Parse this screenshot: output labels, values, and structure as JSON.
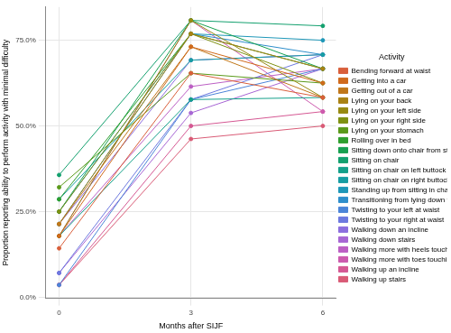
{
  "chart_data": {
    "type": "line",
    "x_label": "Months after SIJF",
    "y_label": "Proportion reporting ability to perform activity with minimal difficulty",
    "legend_title": "Activity",
    "legend": "right",
    "grid": true,
    "marker": "circle",
    "line_style": "solid",
    "x": [
      0,
      3,
      6
    ],
    "xlim": [
      -0.3,
      6.3
    ],
    "xticks": [
      0,
      3,
      6
    ],
    "ylim": [
      -0.3,
      84.7
    ],
    "yticks": [
      {
        "value": 0,
        "label": "0.0%"
      },
      {
        "value": 25,
        "label": "25.0%"
      },
      {
        "value": 50,
        "label": "50.0%"
      },
      {
        "value": 75,
        "label": "75.0%"
      }
    ],
    "series": [
      {
        "name": "Bending forward at waist",
        "color": "#D95F3B",
        "values": [
          14.3,
          65.4,
          58.3
        ]
      },
      {
        "name": "Getting into a car",
        "color": "#D06A1C",
        "values": [
          17.9,
          73.1,
          62.5
        ]
      },
      {
        "name": "Getting out of a car",
        "color": "#C0771A",
        "values": [
          21.4,
          73.1,
          58.3
        ]
      },
      {
        "name": "Lying on your back",
        "color": "#A98214",
        "values": [
          21.4,
          76.9,
          66.7
        ]
      },
      {
        "name": "Lying on your left side",
        "color": "#978A12",
        "values": [
          17.9,
          80.8,
          58.3
        ]
      },
      {
        "name": "Lying on your right side",
        "color": "#7E9112",
        "values": [
          25.0,
          76.9,
          62.5
        ]
      },
      {
        "name": "Lying on your stomach",
        "color": "#5A9A1A",
        "values": [
          32.1,
          65.4,
          62.5
        ]
      },
      {
        "name": "Rolling over in bed",
        "color": "#2E9F2E",
        "values": [
          28.6,
          76.9,
          66.7
        ]
      },
      {
        "name": "Sitting down onto chair from standing",
        "color": "#17A050",
        "values": [
          25.0,
          80.8,
          66.7
        ]
      },
      {
        "name": "Sitting on chair",
        "color": "#13A06E",
        "values": [
          35.7,
          80.8,
          79.2
        ]
      },
      {
        "name": "Sitting on chair on left buttock",
        "color": "#14A08A",
        "values": [
          17.9,
          57.7,
          58.3
        ]
      },
      {
        "name": "Sitting on chair on right buttock",
        "color": "#179DA3",
        "values": [
          28.6,
          69.2,
          70.8
        ]
      },
      {
        "name": "Standing up from sitting in chair",
        "color": "#1E97B8",
        "values": [
          21.4,
          76.9,
          75.0
        ]
      },
      {
        "name": "Transitioning from lying down to sitting up",
        "color": "#2E8ECB",
        "values": [
          25.0,
          76.9,
          70.8
        ]
      },
      {
        "name": "Twisting to your left at waist",
        "color": "#4B84D8",
        "values": [
          3.6,
          57.7,
          66.7
        ]
      },
      {
        "name": "Twisting to your right at waist",
        "color": "#6D79DF",
        "values": [
          7.1,
          57.7,
          70.8
        ]
      },
      {
        "name": "Walking down an incline",
        "color": "#8C6EDE",
        "values": [
          21.4,
          69.2,
          70.8
        ]
      },
      {
        "name": "Walking down stairs",
        "color": "#A766D4",
        "values": [
          7.1,
          53.8,
          66.7
        ]
      },
      {
        "name": "Walking more with heels touching first",
        "color": "#BC5FC4",
        "values": [
          17.9,
          61.5,
          66.7
        ]
      },
      {
        "name": "Walking more with toes touching first",
        "color": "#CC5AAE",
        "values": [
          17.9,
          80.8,
          54.2
        ]
      },
      {
        "name": "Walking up an incline",
        "color": "#D55893",
        "values": [
          3.6,
          50.0,
          54.2
        ]
      },
      {
        "name": "Walking up stairs",
        "color": "#D95B76",
        "values": [
          3.6,
          46.2,
          50.0
        ]
      }
    ]
  }
}
